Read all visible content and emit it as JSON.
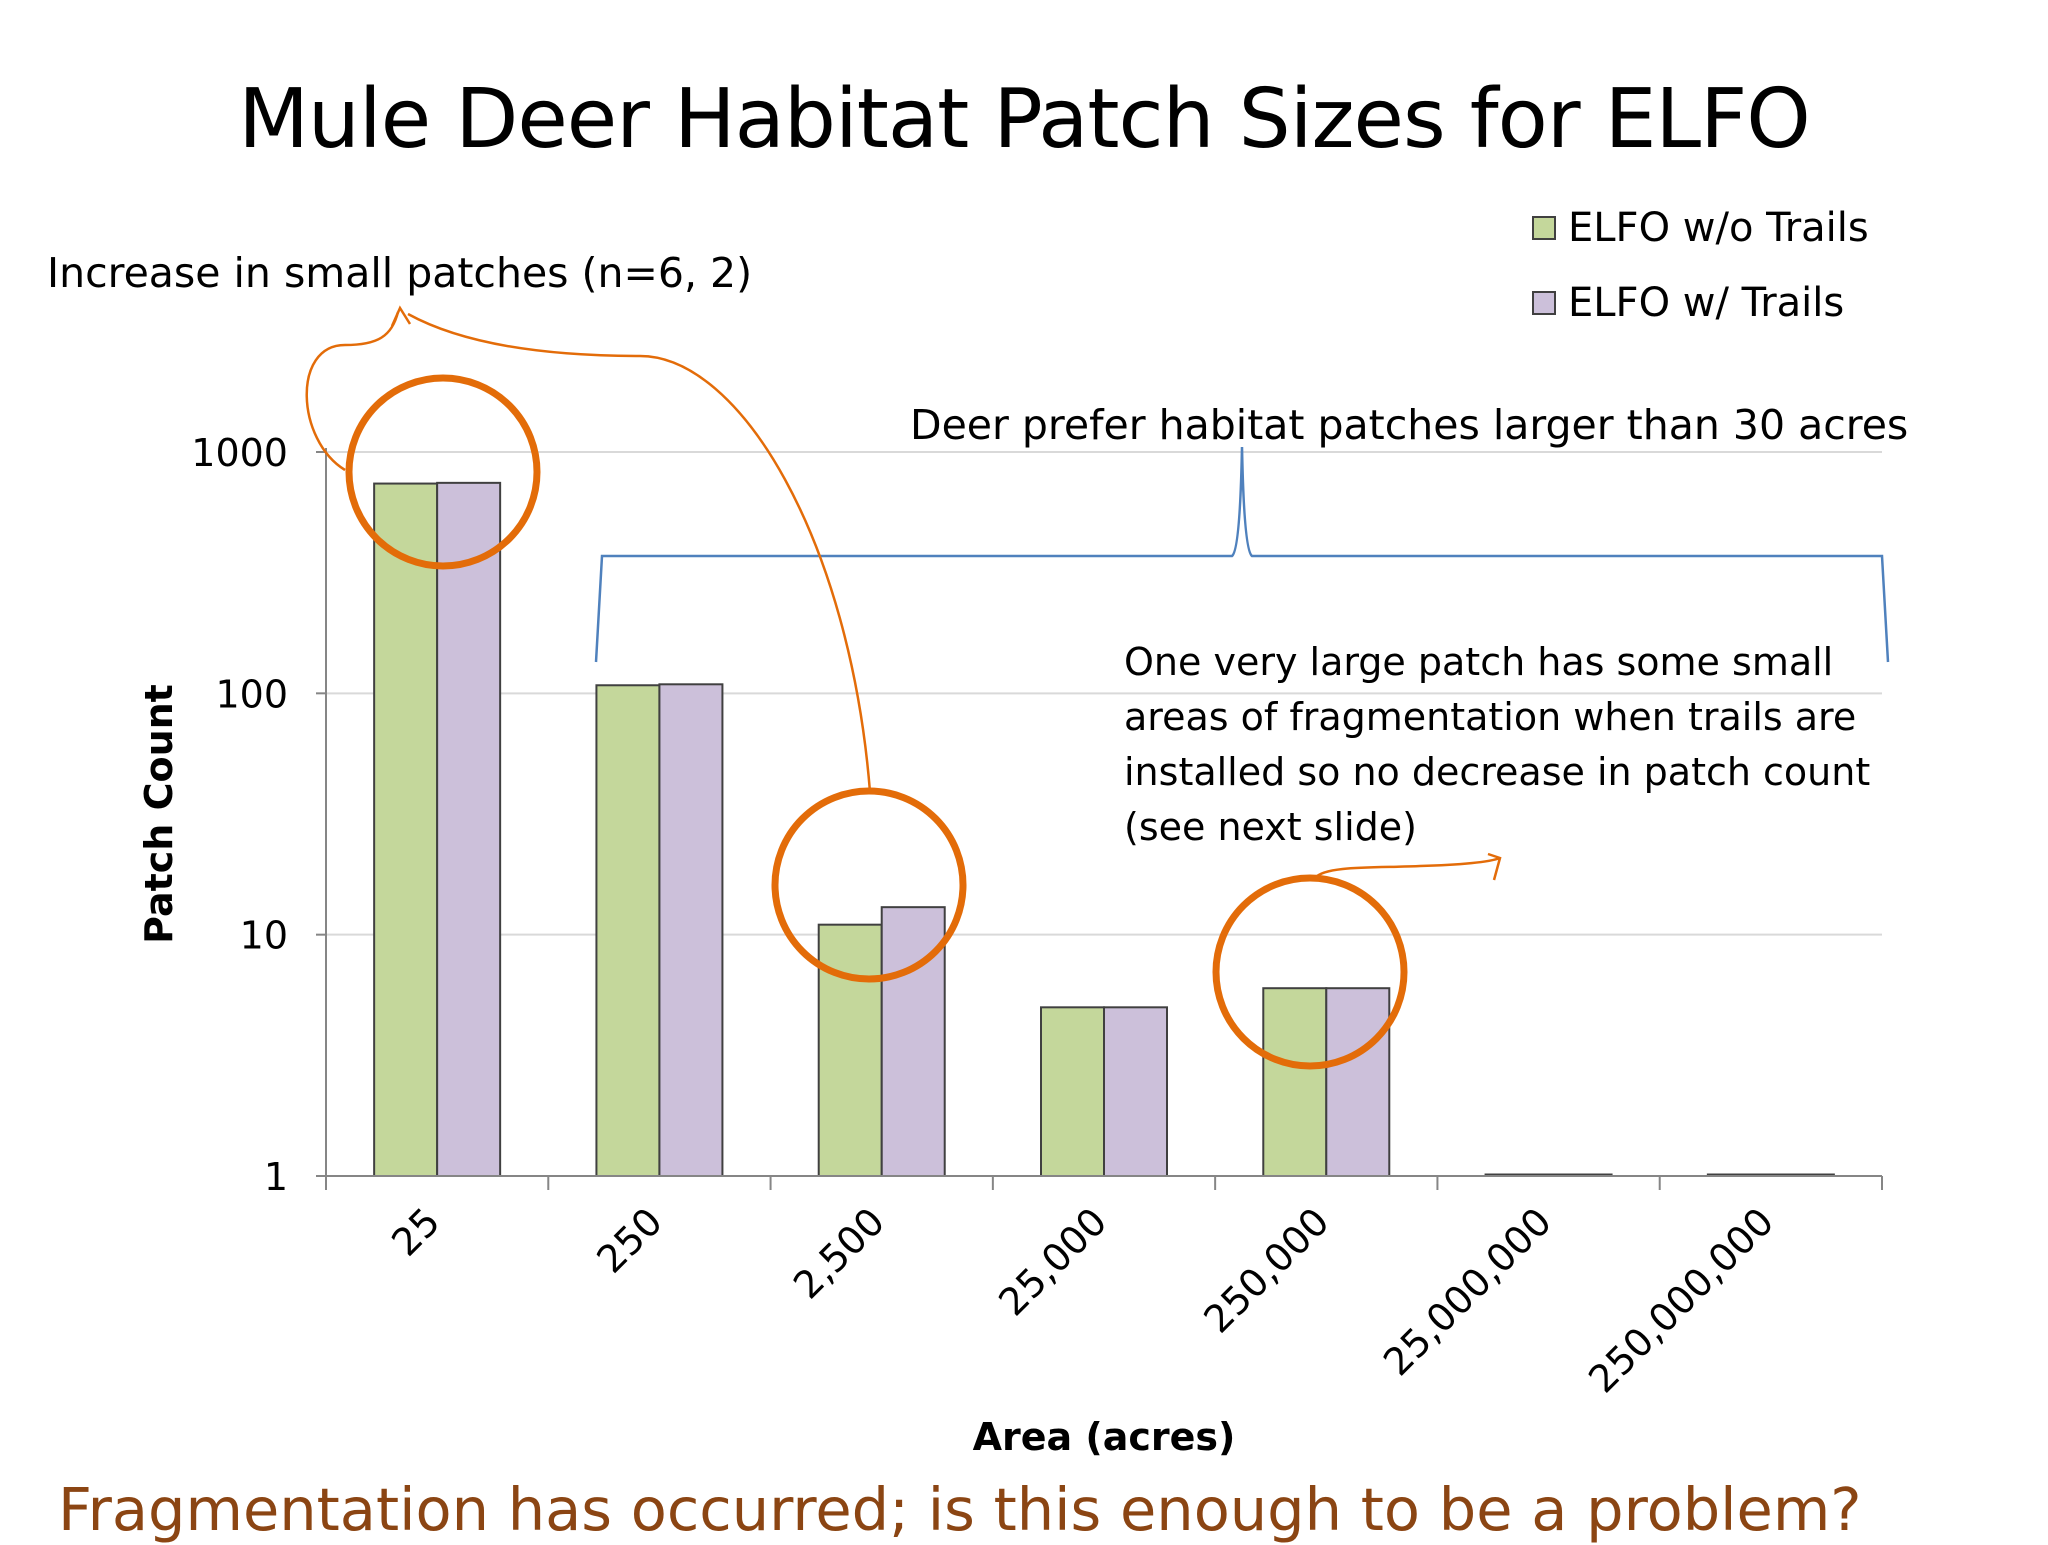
{
  "slide": {
    "title": "Mule Deer Habitat Patch Sizes for ELFO",
    "footer": "Fragmentation has occurred; is this enough to be a problem?"
  },
  "annotations": {
    "small_patches": "Increase in small patches (n=6, 2)",
    "deer_prefer": "Deer prefer habitat patches larger than 30 acres",
    "large_patch": [
      "One very large patch has some small",
      "areas of fragmentation when trails are",
      "installed so no decrease in patch count",
      "(see next slide)"
    ]
  },
  "colors": {
    "series_0": "#c4d79b",
    "series_1": "#ccc0da",
    "annotation_orange": "#e36c09",
    "brace_blue": "#4f81bd",
    "footer_text": "#8b4513",
    "gridline": "#d9d9d9",
    "axis": "#868686"
  },
  "chart_data": {
    "type": "bar",
    "xlabel": "Area (acres)",
    "ylabel": "Patch Count",
    "y_scale": "log",
    "ylim": [
      1,
      1000
    ],
    "yticks": [
      1,
      10,
      100,
      1000
    ],
    "ytick_labels": [
      "1",
      "10",
      "100",
      "1000"
    ],
    "categories": [
      "25",
      "250",
      "2,500",
      "25,000",
      "250,000",
      "25,000,000",
      "250,000,000"
    ],
    "series": [
      {
        "name": "ELFO w/o Trails",
        "values": [
          740,
          108,
          11,
          5,
          6,
          1,
          1
        ]
      },
      {
        "name": "ELFO w/ Trails",
        "values": [
          745,
          109,
          13,
          5,
          6,
          1,
          1
        ]
      }
    ],
    "grid": true,
    "legend": "top-right"
  }
}
